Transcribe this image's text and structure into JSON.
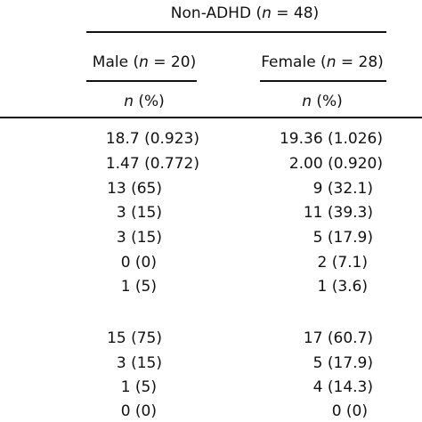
{
  "header": {
    "group_title": {
      "pre": "Non-ADHD (",
      "n": "n",
      "post": " = 48)"
    },
    "male": {
      "pre": "Male (",
      "n": "n",
      "post": " = 20)"
    },
    "female": {
      "pre": "Female (",
      "n": "n",
      "post": " = 28)"
    },
    "subheader": {
      "n": "n",
      "post": " (%)"
    }
  },
  "rows": [
    {
      "male": "18.7 (0.923)",
      "female": "19.36 (1.026)"
    },
    {
      "male": "1.47 (0.772)",
      "female": "2.00 (0.920)"
    },
    {
      "male": "13 (65)",
      "female": "9 (32.1)"
    },
    {
      "male": "3 (15)",
      "female": "11 (39.3)"
    },
    {
      "male": "3 (15)",
      "female": "5 (17.9)"
    },
    {
      "male": "0 (0)",
      "female": "2 (7.1)"
    },
    {
      "male": "1 (5)",
      "female": "1 (3.6)"
    },
    {
      "male": "15 (75)",
      "female": "17 (60.7)"
    },
    {
      "male": "3 (15)",
      "female": "5 (17.9)"
    },
    {
      "male": "1 (5)",
      "female": "4 (14.3)"
    },
    {
      "male": "0 (0)",
      "female": "0 (0)"
    }
  ]
}
